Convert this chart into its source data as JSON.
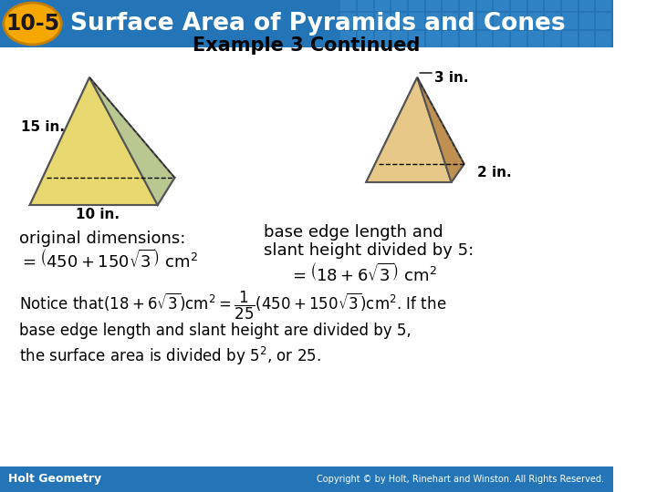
{
  "header_bg_color": "#2475b8",
  "header_text": "Surface Area of Pyramids and Cones",
  "header_badge_color": "#f5a800",
  "header_badge_text": "10-5",
  "subtitle": "Example 3 Continued",
  "body_bg_color": "#ffffff",
  "footer_bg_color": "#2475b8",
  "footer_left": "Holt Geometry",
  "footer_right": "Copyright © by Holt, Rinehart and Winston. All Rights Reserved.",
  "left_label1": "original dimensions:",
  "left_label2": "= (450 + 150√3) cm²",
  "right_label1": "base edge length and",
  "right_label2": "slant height divided by 5:",
  "right_label3": "= (18 + 6√3) cm²",
  "notice_line1": "Notice that(18 + 6√3)cm² =",
  "notice_frac_num": "1",
  "notice_frac_den": "25",
  "notice_line1b": "(450 + 150√3)cm² . If the",
  "notice_line2": "base edge length and slant height are divided by 5,",
  "notice_line3": "the surface area is divided by 5², or 25.",
  "pyramid1_label_15": "15 in.",
  "pyramid1_label_10": "10 in.",
  "pyramid2_label_3": "3 in.",
  "pyramid2_label_2": "2 in.",
  "font_color": "#000000",
  "header_tile_color": "#3a8fd1"
}
